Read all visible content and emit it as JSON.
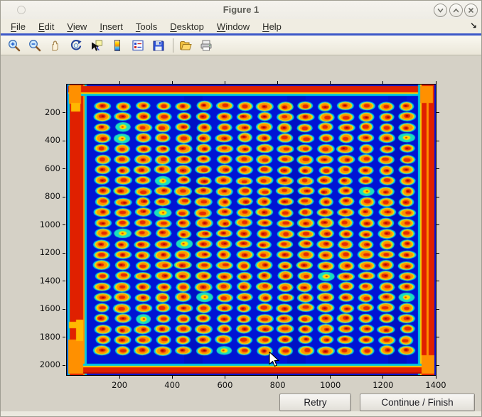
{
  "window": {
    "title": "Figure 1",
    "controls": [
      {
        "name": "shade-window",
        "glyph": "chevron-down"
      },
      {
        "name": "maximize-window",
        "glyph": "chevron-up"
      },
      {
        "name": "close-window",
        "glyph": "x"
      }
    ]
  },
  "menu": {
    "items": [
      {
        "u": "F",
        "rest": "ile"
      },
      {
        "u": "E",
        "rest": "dit"
      },
      {
        "u": "V",
        "rest": "iew"
      },
      {
        "u": "I",
        "rest": "nsert"
      },
      {
        "u": "T",
        "rest": "ools"
      },
      {
        "u": "D",
        "rest": "esktop"
      },
      {
        "u": "W",
        "rest": "indow"
      },
      {
        "u": "H",
        "rest": "elp"
      }
    ],
    "dock_glyph": "↘"
  },
  "toolbar": {
    "icons": [
      "zoom-in",
      "zoom-out",
      "pan",
      "rotate-3d",
      "data-cursor",
      "colorbar",
      "insert-legend",
      "save",
      "open",
      "print"
    ]
  },
  "chart_data": {
    "type": "heatmap",
    "title": "",
    "description": "Microarray / plate scan rendered with jet colormap: 16 x 24 grid of spots (red-orange cores, yellow rings, cyan halos) on deep blue background, red saturated border bands on all four edges with orange corner blobs",
    "x_ticks": [
      200,
      400,
      600,
      800,
      1000,
      1200,
      1400
    ],
    "y_ticks": [
      200,
      400,
      600,
      800,
      1000,
      1200,
      1400,
      1600,
      1800,
      2000
    ],
    "x_range": [
      0,
      1400
    ],
    "y_range": [
      0,
      2070
    ],
    "grid": {
      "cols": 16,
      "rows": 24,
      "col_pitch_data": 77,
      "row_pitch_data": 76
    },
    "colors": {
      "background_blue": "#0014d4",
      "halo_cyan": "#00cfe6",
      "halo_teal": "#19e0c0",
      "ring_yellow": "#ffdd00",
      "ring_orange": "#ff9300",
      "core_red": "#e42a00",
      "core_dark_red": "#a80000",
      "border_red": "#e02000",
      "border_dark_red": "#c01000",
      "corner_orange": "#ff9000",
      "corner_yellow": "#ffb800",
      "edge_cyan": "#00c8e0",
      "edge_yellow": "#ffcc00"
    },
    "seed": 42
  },
  "buttons": [
    {
      "label": "Retry"
    },
    {
      "label": "Continue / Finish"
    }
  ]
}
